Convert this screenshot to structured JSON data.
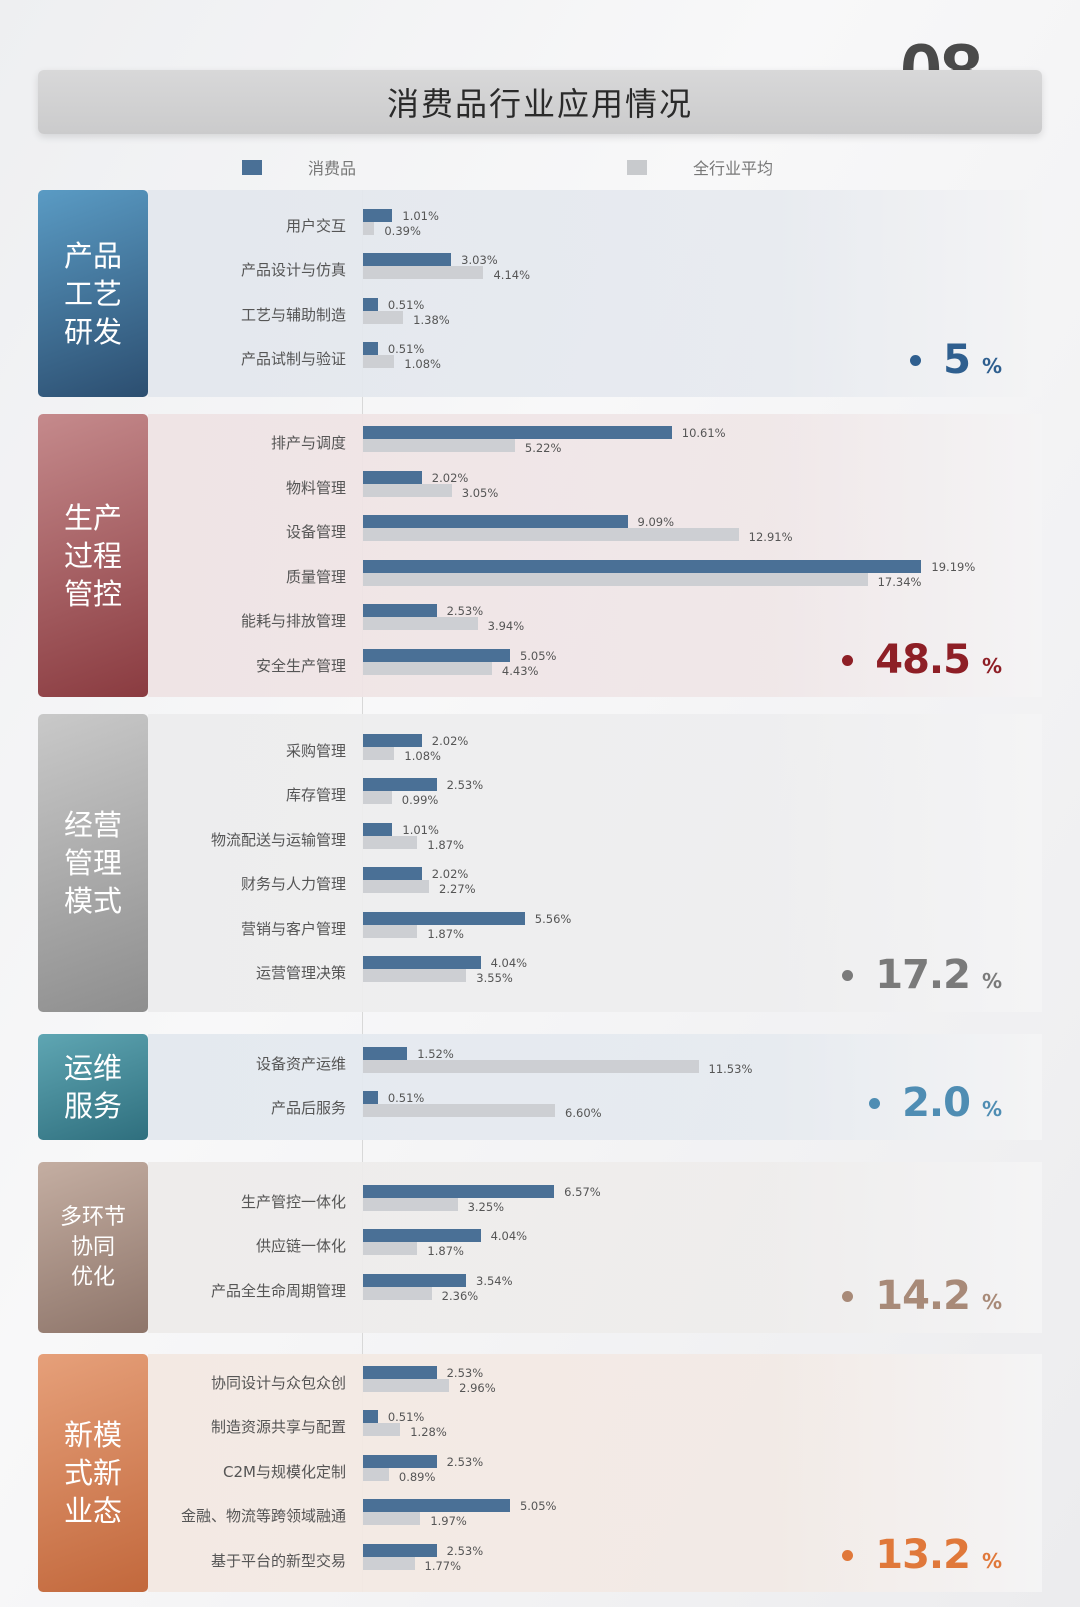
{
  "title": "消费品行业应用情况",
  "page_number": "08",
  "chart_data": {
    "type": "bar",
    "orientation": "horizontal",
    "title": "消费品行业应用情况",
    "legend": [
      {
        "name": "消费品",
        "color": "#4a7096"
      },
      {
        "name": "全行业平均",
        "color": "#c8cacd"
      }
    ],
    "legend_position": "top",
    "unit": "%",
    "xlim": [
      0,
      20
    ],
    "grid": false,
    "groups": [
      {
        "name": "产品\n工艺\n研发",
        "total": "5",
        "color": "#2f5f8f",
        "grad": [
          "#5a9bc4",
          "#2c4e70"
        ],
        "bg": "#e4e8ee",
        "categories": [
          "用户交互",
          "产品设计与仿真",
          "工艺与辅助制造",
          "产品试制与验证"
        ],
        "series": [
          {
            "name": "消费品",
            "values": [
              1.01,
              3.03,
              0.51,
              0.51
            ]
          },
          {
            "name": "全行业平均",
            "values": [
              0.39,
              4.14,
              1.38,
              1.08
            ]
          }
        ]
      },
      {
        "name": "生产\n过程\n管控",
        "total": "48.5",
        "color": "#8e1f26",
        "grad": [
          "#c58a8c",
          "#8a3b40"
        ],
        "bg": "#efe4e5",
        "categories": [
          "排产与调度",
          "物料管理",
          "设备管理",
          "质量管理",
          "能耗与排放管理",
          "安全生产管理"
        ],
        "series": [
          {
            "name": "消费品",
            "values": [
              10.61,
              2.02,
              9.09,
              19.19,
              2.53,
              5.05
            ]
          },
          {
            "name": "全行业平均",
            "values": [
              5.22,
              3.05,
              12.91,
              17.34,
              3.94,
              4.43
            ]
          }
        ]
      },
      {
        "name": "经营\n管理\n模式",
        "total": "17.2",
        "color": "#7a7a7a",
        "grad": [
          "#c9c9c9",
          "#8e8e8e"
        ],
        "bg": "#ededee",
        "categories": [
          "采购管理",
          "库存管理",
          "物流配送与运输管理",
          "财务与人力管理",
          "营销与客户管理",
          "运营管理决策"
        ],
        "series": [
          {
            "name": "消费品",
            "values": [
              2.02,
              2.53,
              1.01,
              2.02,
              5.56,
              4.04
            ]
          },
          {
            "name": "全行业平均",
            "values": [
              1.08,
              0.99,
              1.87,
              2.27,
              1.87,
              3.55
            ]
          }
        ]
      },
      {
        "name": "运维\n服务",
        "total": "2.0",
        "color": "#4f8db3",
        "grad": [
          "#5fa6b3",
          "#2f6f7e"
        ],
        "bg": "#e4e9ef",
        "categories": [
          "设备资产运维",
          "产品后服务"
        ],
        "series": [
          {
            "name": "消费品",
            "values": [
              1.52,
              0.51
            ]
          },
          {
            "name": "全行业平均",
            "values": [
              11.53,
              6.6
            ]
          }
        ]
      },
      {
        "name": "多环节\n协同\n优化",
        "total": "14.2",
        "color": "#a88a78",
        "grad": [
          "#c4aea2",
          "#8e756a"
        ],
        "bg": "#eeeceb",
        "categories": [
          "生产管控一体化",
          "供应链一体化",
          "产品全生命周期管理"
        ],
        "series": [
          {
            "name": "消费品",
            "values": [
              6.57,
              4.04,
              3.54
            ]
          },
          {
            "name": "全行业平均",
            "values": [
              3.25,
              1.87,
              2.36
            ]
          }
        ]
      },
      {
        "name": "新模\n式新\n业态",
        "total": "13.2",
        "color": "#e0783a",
        "grad": [
          "#e6a07a",
          "#c2683c"
        ],
        "bg": "#f3e9e3",
        "categories": [
          "协同设计与众包众创",
          "制造资源共享与配置",
          "C2M与规模化定制",
          "金融、物流等跨领域融通",
          "基于平台的新型交易"
        ],
        "series": [
          {
            "name": "消费品",
            "values": [
              2.53,
              0.51,
              2.53,
              5.05,
              2.53
            ]
          },
          {
            "name": "全行业平均",
            "values": [
              2.96,
              1.28,
              0.89,
              1.97,
              1.77
            ]
          }
        ]
      }
    ]
  }
}
